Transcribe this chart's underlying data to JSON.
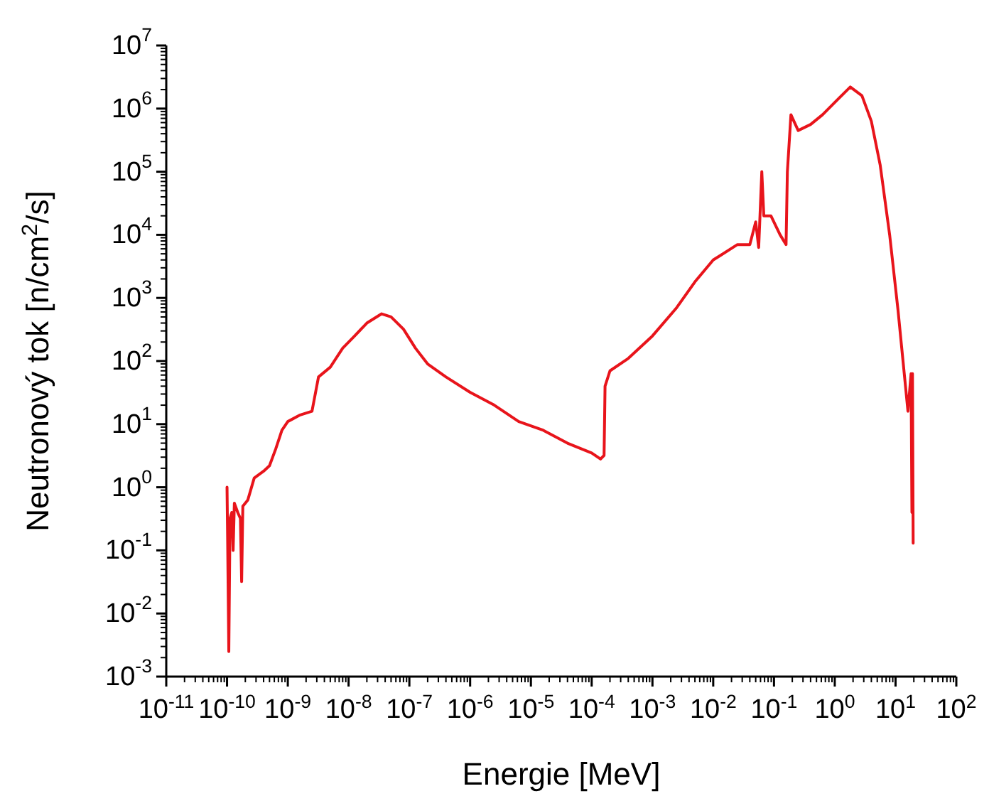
{
  "chart_data": {
    "type": "line",
    "xlabel": "Energie [MeV]",
    "ylabel": "Neutronový tok [n/cm$^{2}$/s]",
    "log": "xy",
    "grid": false,
    "marker": "none",
    "line_style": "solid",
    "xlim": [
      1e-11,
      100
    ],
    "ylim": [
      0.001,
      10000000
    ],
    "xticks": [
      {
        "value": 1e-11,
        "label": "10$^{-11}$"
      },
      {
        "value": 1e-10,
        "label": "10$^{-10}$"
      },
      {
        "value": 1e-09,
        "label": "10$^{-9}$"
      },
      {
        "value": 1e-08,
        "label": "10$^{-8}$"
      },
      {
        "value": 1e-07,
        "label": "10$^{-7}$"
      },
      {
        "value": 1e-06,
        "label": "10$^{-6}$"
      },
      {
        "value": 1e-05,
        "label": "10$^{-5}$"
      },
      {
        "value": 0.0001,
        "label": "10$^{-4}$"
      },
      {
        "value": 0.001,
        "label": "10$^{-3}$"
      },
      {
        "value": 0.01,
        "label": "10$^{-2}$"
      },
      {
        "value": 0.1,
        "label": "10$^{-1}$"
      },
      {
        "value": 1,
        "label": "10$^{0}$"
      },
      {
        "value": 10,
        "label": "10$^{1}$"
      },
      {
        "value": 100,
        "label": "10$^{2}$"
      }
    ],
    "yticks": [
      {
        "value": 0.001,
        "label": "10$^{-3}$"
      },
      {
        "value": 0.01,
        "label": "10$^{-2}$"
      },
      {
        "value": 0.1,
        "label": "10$^{-1}$"
      },
      {
        "value": 1,
        "label": "10$^{0}$"
      },
      {
        "value": 10,
        "label": "10$^{1}$"
      },
      {
        "value": 100,
        "label": "10$^{2}$"
      },
      {
        "value": 1000,
        "label": "10$^{3}$"
      },
      {
        "value": 10000,
        "label": "10$^{4}$"
      },
      {
        "value": 100000,
        "label": "10$^{5}$"
      },
      {
        "value": 1000000,
        "label": "10$^{6}$"
      },
      {
        "value": 10000000,
        "label": "10$^{7}$"
      }
    ],
    "series": [
      {
        "color": "#e8141b",
        "x": [
          1e-10,
          1.02e-10,
          1.07e-10,
          1.12e-10,
          1.2e-10,
          1.26e-10,
          1.32e-10,
          1.5e-10,
          1.66e-10,
          1.74e-10,
          1.82e-10,
          2.2e-10,
          2.8e-10,
          4e-10,
          5e-10,
          6.3e-10,
          8e-10,
          1e-09,
          1.6e-09,
          2.5e-09,
          3.2e-09,
          5e-09,
          8e-09,
          1.26e-08,
          2e-08,
          3.5e-08,
          5e-08,
          8e-08,
          1.26e-07,
          2e-07,
          4e-07,
          1e-06,
          2.5e-06,
          6.3e-06,
          1.6e-05,
          4e-05,
          0.0001,
          0.00014,
          0.00016,
          0.000166,
          0.0002,
          0.0004,
          0.001,
          0.0025,
          0.005,
          0.01,
          0.025,
          0.04,
          0.05,
          0.056,
          0.063,
          0.068,
          0.089,
          0.126,
          0.158,
          0.166,
          0.19,
          0.25,
          0.4,
          0.63,
          1.12,
          1.8,
          2.8,
          4,
          5.6,
          8,
          11,
          16,
          18,
          18.6,
          19,
          19.5
        ],
        "values": [
          1.0,
          0.2,
          0.0025,
          0.32,
          0.4,
          0.1,
          0.56,
          0.4,
          0.32,
          0.032,
          0.5,
          0.63,
          1.4,
          1.8,
          2.2,
          4,
          8,
          11,
          14,
          16,
          56,
          80,
          160,
          250,
          400,
          560,
          500,
          320,
          160,
          90,
          56,
          32,
          20,
          11,
          8,
          5,
          3.5,
          2.8,
          3.2,
          40,
          70,
          110,
          250,
          700,
          1800,
          4000,
          7000,
          7000,
          16000,
          6300,
          100000,
          20000,
          20000,
          10000,
          7000,
          100000,
          800000,
          450000,
          560000,
          800000,
          1400000,
          2200000,
          1600000,
          630000,
          126000,
          10000,
          630,
          16,
          63,
          0.4,
          63,
          0.13
        ]
      }
    ]
  }
}
